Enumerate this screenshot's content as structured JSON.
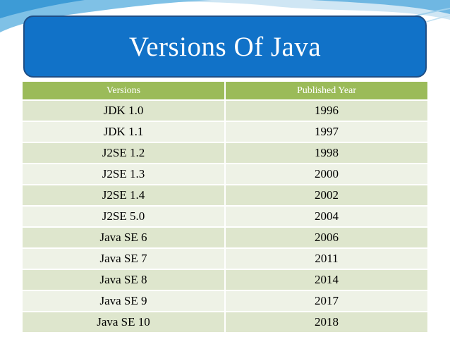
{
  "slide": {
    "title": "Versions Of Java",
    "accent_color": "#1172c8",
    "header_color": "#9bbb59"
  },
  "table": {
    "headers": [
      "Versions",
      "Published Year"
    ],
    "rows": [
      [
        "JDK 1.0",
        "1996"
      ],
      [
        "JDK 1.1",
        "1997"
      ],
      [
        "J2SE 1.2",
        "1998"
      ],
      [
        "J2SE 1.3",
        "2000"
      ],
      [
        "J2SE 1.4",
        "2002"
      ],
      [
        "J2SE 5.0",
        "2004"
      ],
      [
        "Java SE 6",
        "2006"
      ],
      [
        "Java SE 7",
        "2011"
      ],
      [
        "Java SE 8",
        "2014"
      ],
      [
        "Java SE 9",
        "2017"
      ],
      [
        "Java SE 10",
        "2018"
      ]
    ]
  }
}
